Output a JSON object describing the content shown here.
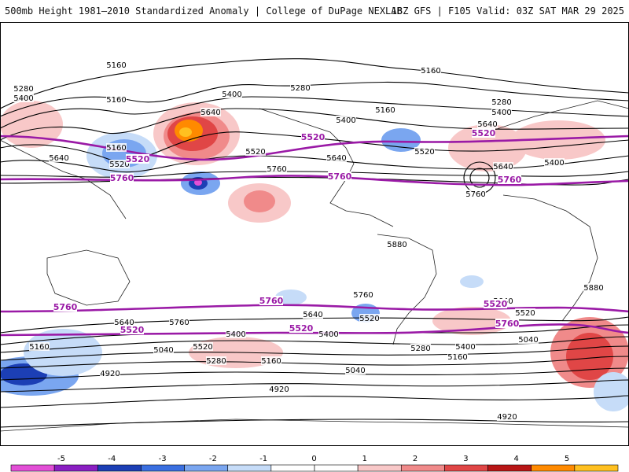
{
  "header": {
    "title": "500mb Height 1981–2010 Standardized Anomaly | College of DuPage NEXLAB",
    "run_info": "18Z GFS | F105 Valid: 03Z SAT MAR 29 2025"
  },
  "map": {
    "black_contour_labels": [
      "5160",
      "5160",
      "5280",
      "5400",
      "5160",
      "5400",
      "5280",
      "5160",
      "5280",
      "5400",
      "5640",
      "5400",
      "5520",
      "5640",
      "5520",
      "5640",
      "5160",
      "5520",
      "5400",
      "5640",
      "5760",
      "5880",
      "5760",
      "5640",
      "5760",
      "5640",
      "5520",
      "5400",
      "5160",
      "5520",
      "5400",
      "5280",
      "5040",
      "5160",
      "4920",
      "5760",
      "5640",
      "5520",
      "5400",
      "5280",
      "5160",
      "5040",
      "5040",
      "5880",
      "4920",
      "4920",
      "5640"
    ],
    "purple_contour_labels": [
      "5520",
      "5520",
      "5760",
      "5760",
      "5760",
      "5520",
      "5760",
      "5760",
      "5520",
      "5520",
      "5520",
      "5760"
    ]
  },
  "legend": {
    "ticks": [
      "-5",
      "-4",
      "-3",
      "-2",
      "-1",
      "0",
      "1",
      "2",
      "3",
      "4",
      "5"
    ],
    "colors": [
      "#e24fd6",
      "#8a1fc2",
      "#1c3fb5",
      "#3a6fe0",
      "#7aa6f0",
      "#c6dcf8",
      "#ffffff",
      "#ffffff",
      "#f8c8c8",
      "#f08a8a",
      "#e04646",
      "#b81616",
      "#ff8a00",
      "#ffc020"
    ]
  }
}
